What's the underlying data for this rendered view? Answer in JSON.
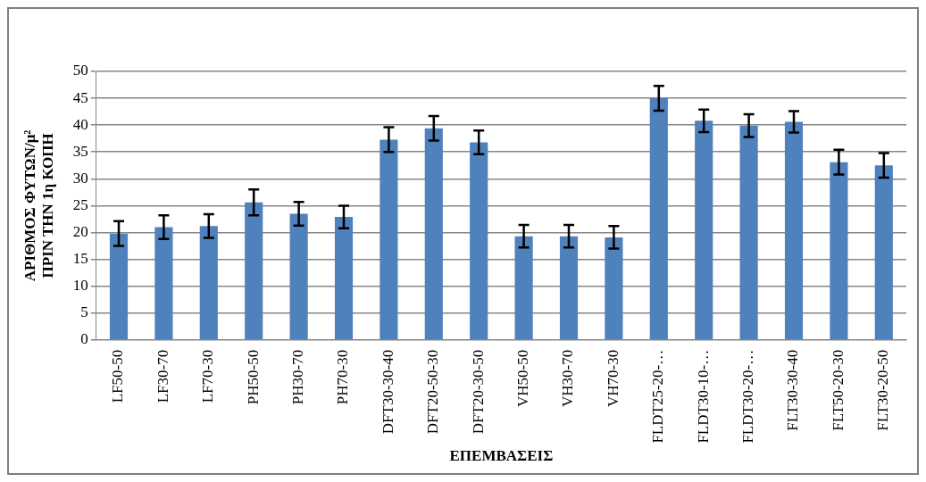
{
  "chart_data": {
    "type": "bar",
    "xlabel": "ΕΠΕΜΒΑΣΕΙΣ",
    "ylabel": "ΑΡΙΘΜΟΣ ΦΥΤΩΝ/μ²\nΠΡΙΝ ΤΗΝ 1η ΚΟΠΗ",
    "categories": [
      "LF50-50",
      "LF30-70",
      "LF70-30",
      "PH50-50",
      "PH30-70",
      "PH70-30",
      "DFT30-30-40",
      "DFT20-50-30",
      "DFT20-30-50",
      "VH50-50",
      "VH30-70",
      "VH70-30",
      "FLDT25-20-…",
      "FLDT30-10-…",
      "FLDT30-20-…",
      "FLT30-30-40",
      "FLT50-20-30",
      "FLT30-20-50"
    ],
    "values": [
      19.8,
      21,
      21.2,
      25.6,
      23.5,
      22.9,
      37.3,
      39.4,
      36.8,
      19.3,
      19.3,
      19.1,
      45,
      40.8,
      39.9,
      40.6,
      33.1,
      32.5
    ],
    "errors": [
      2.3,
      2.2,
      2.2,
      2.4,
      2.2,
      2.1,
      2.3,
      2.3,
      2.2,
      2.1,
      2.1,
      2.1,
      2.3,
      2.1,
      2.1,
      2,
      2.3,
      2.3
    ],
    "color": "#4f81bd",
    "ylim": [
      0,
      50
    ],
    "yticks": [
      0,
      5,
      10,
      15,
      20,
      25,
      30,
      35,
      40,
      45,
      50
    ],
    "grid": "y",
    "legend": false
  }
}
